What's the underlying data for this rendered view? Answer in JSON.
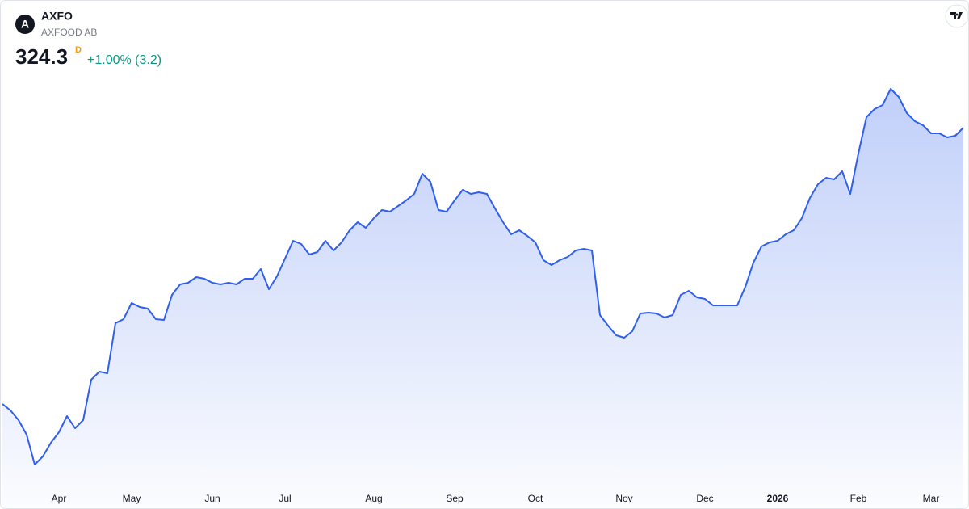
{
  "chart_data": {
    "type": "line",
    "logo": "A",
    "title": "AXFO",
    "subtitle": "AXFOOD AB",
    "price": 324.3,
    "interval": "D",
    "change": "+1.00% (3.2)",
    "color": "#2f5fec",
    "ylim": [
      235.9,
      355.9
    ],
    "categories": [
      null,
      null,
      null,
      null,
      null,
      null,
      null,
      "Apr",
      null,
      null,
      null,
      null,
      null,
      null,
      null,
      null,
      "May",
      null,
      null,
      null,
      null,
      null,
      null,
      null,
      null,
      null,
      "Jun",
      null,
      null,
      null,
      null,
      null,
      null,
      null,
      null,
      "Jul",
      null,
      null,
      null,
      null,
      null,
      null,
      null,
      null,
      null,
      null,
      "Aug",
      null,
      null,
      null,
      null,
      null,
      null,
      null,
      null,
      null,
      "Sep",
      null,
      null,
      null,
      null,
      null,
      null,
      null,
      null,
      null,
      "Oct",
      null,
      null,
      null,
      null,
      null,
      null,
      null,
      null,
      null,
      null,
      "Nov",
      null,
      null,
      null,
      null,
      null,
      null,
      null,
      null,
      null,
      "Dec",
      null,
      null,
      null,
      null,
      null,
      null,
      null,
      null,
      "2026",
      null,
      null,
      null,
      null,
      null,
      null,
      null,
      null,
      null,
      "Feb",
      null,
      null,
      null,
      null,
      null,
      null,
      null,
      null,
      "Mar",
      null,
      null,
      null,
      null
    ],
    "values": [
      255.9,
      254.3,
      251.9,
      248.3,
      240.9,
      242.9,
      246.3,
      248.9,
      252.9,
      249.9,
      251.9,
      261.9,
      263.9,
      263.5,
      275.9,
      276.9,
      280.9,
      279.9,
      279.5,
      276.9,
      276.7,
      282.9,
      285.5,
      285.9,
      287.3,
      286.9,
      285.9,
      285.5,
      285.9,
      285.5,
      286.9,
      286.9,
      289.3,
      284.3,
      287.5,
      291.9,
      296.3,
      295.5,
      292.9,
      293.5,
      296.3,
      293.9,
      295.9,
      298.9,
      300.9,
      299.5,
      301.9,
      303.9,
      303.5,
      304.9,
      306.3,
      307.9,
      312.9,
      310.9,
      303.9,
      303.5,
      306.3,
      308.9,
      307.9,
      308.3,
      307.9,
      304.3,
      300.9,
      297.9,
      298.9,
      297.5,
      295.9,
      291.5,
      290.3,
      291.5,
      292.3,
      293.9,
      294.3,
      293.9,
      277.9,
      275.3,
      272.9,
      272.3,
      273.9,
      278.3,
      278.5,
      278.3,
      277.3,
      277.9,
      282.9,
      283.9,
      282.3,
      281.9,
      280.3,
      280.3,
      280.3,
      280.3,
      284.9,
      290.9,
      294.9,
      295.9,
      296.3,
      297.9,
      298.9,
      301.9,
      306.9,
      310.3,
      311.9,
      311.5,
      313.5,
      307.9,
      317.9,
      326.9,
      328.9,
      329.9,
      333.9,
      331.9,
      327.9,
      325.9,
      324.9,
      322.9,
      322.9,
      321.9,
      322.3,
      324.3
    ]
  }
}
